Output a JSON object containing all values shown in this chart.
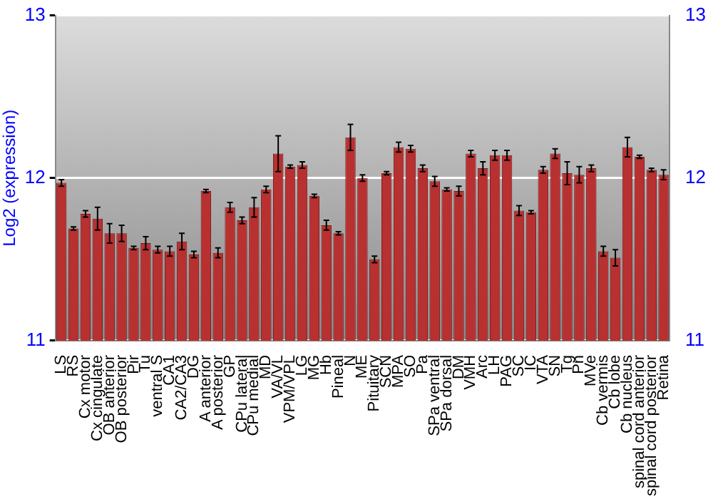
{
  "chart_data": {
    "type": "bar",
    "ylabel": "Log2 (expression)",
    "categories": [
      "LS",
      "RS",
      "Cx motor",
      "Cx cingulate",
      "OB anterior",
      "OB posterior",
      "Pir",
      "Tu",
      "ventral S",
      "CA1",
      "CA2/CA3",
      "DG",
      "A anterior",
      "A posterior",
      "GP",
      "CPu lateral",
      "CPu medial",
      "MD",
      "VA/VL",
      "VPM/VPL",
      "LG",
      "MG",
      "Hb",
      "Pineal",
      "N",
      "ME",
      "Pituitary",
      "SCN",
      "MPA",
      "SO",
      "Pa",
      "SPa ventral",
      "SPa dorsal",
      "DM",
      "VMH",
      "Arc",
      "LH",
      "PAG",
      "SC",
      "IC",
      "VTA",
      "SN",
      "Tg",
      "Pn",
      "MVe",
      "Cb vermis",
      "Cb lobe",
      "Cb nucleus",
      "spinal cord anterior",
      "spinal cord posterior",
      "Retina"
    ],
    "values": [
      11.97,
      11.69,
      11.78,
      11.75,
      11.66,
      11.66,
      11.57,
      11.6,
      11.56,
      11.55,
      11.61,
      11.53,
      11.92,
      11.54,
      11.82,
      11.74,
      11.82,
      11.93,
      12.15,
      12.07,
      12.08,
      11.89,
      11.71,
      11.66,
      12.25,
      12.0,
      11.5,
      12.03,
      12.19,
      12.18,
      12.06,
      11.98,
      11.93,
      11.92,
      12.15,
      12.06,
      12.14,
      12.14,
      11.8,
      11.79,
      12.05,
      12.15,
      12.03,
      12.02,
      12.06,
      11.55,
      11.51,
      12.19,
      12.13,
      12.05,
      12.02
    ],
    "errors": [
      0.02,
      0.01,
      0.02,
      0.07,
      0.06,
      0.05,
      0.01,
      0.04,
      0.02,
      0.03,
      0.05,
      0.02,
      0.01,
      0.03,
      0.03,
      0.02,
      0.06,
      0.02,
      0.11,
      0.01,
      0.02,
      0.01,
      0.03,
      0.01,
      0.08,
      0.02,
      0.02,
      0.01,
      0.03,
      0.02,
      0.02,
      0.03,
      0.01,
      0.03,
      0.02,
      0.04,
      0.03,
      0.03,
      0.03,
      0.01,
      0.02,
      0.03,
      0.07,
      0.05,
      0.02,
      0.03,
      0.05,
      0.06,
      0.01,
      0.01,
      0.03
    ],
    "color": "#b83030",
    "ylim": [
      11,
      13
    ],
    "yticks": [
      11,
      12,
      13
    ],
    "y2lim": [
      11,
      13
    ],
    "y2ticks": [
      11,
      12,
      13
    ],
    "grid": "y",
    "legend": false
  }
}
